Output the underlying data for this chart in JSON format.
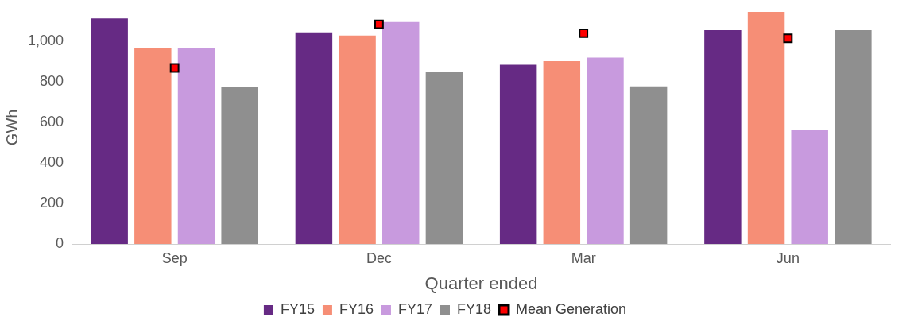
{
  "chart_data": {
    "type": "bar",
    "xlabel": "Quarter ended",
    "ylabel": "GWh",
    "categories": [
      "Sep",
      "Dec",
      "Mar",
      "Jun"
    ],
    "series": [
      {
        "name": "FY15",
        "color": "#662a84",
        "values": [
          1113,
          1044,
          884,
          1055
        ]
      },
      {
        "name": "FY16",
        "color": "#f68e76",
        "values": [
          967,
          1029,
          902,
          1145
        ]
      },
      {
        "name": "FY17",
        "color": "#c89ade",
        "values": [
          967,
          1095,
          920,
          564
        ]
      },
      {
        "name": "FY18",
        "color": "#8f8f8f",
        "values": [
          775,
          851,
          778,
          1055
        ]
      },
      {
        "name": "Mean Generation",
        "type": "scatter",
        "color": "#ff0000",
        "values": [
          869,
          1084,
          1040,
          1015
        ]
      }
    ],
    "ylim": [
      0,
      1150
    ],
    "yticks": [
      0,
      200,
      400,
      600,
      800,
      {
        "value": 1000,
        "label": "1,000"
      }
    ],
    "grid": false,
    "legend": "bottom",
    "marker": "square"
  }
}
